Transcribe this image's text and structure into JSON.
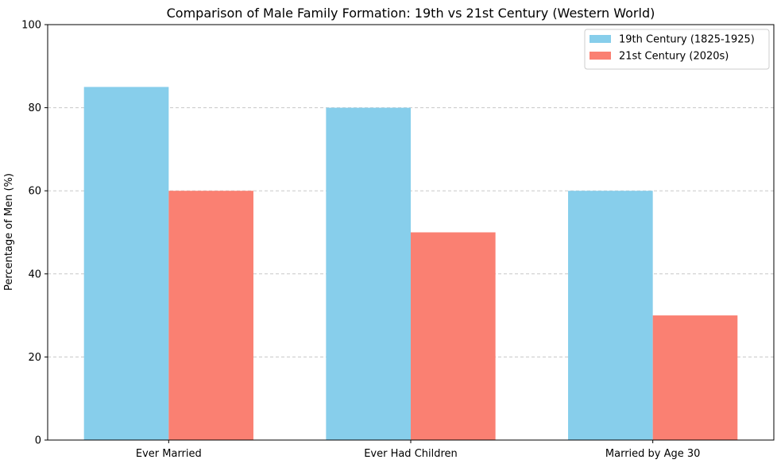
{
  "chart_data": {
    "type": "bar",
    "title": "Comparison of Male Family Formation: 19th vs 21st Century (Western World)",
    "xlabel": "",
    "ylabel": "Percentage of Men (%)",
    "categories": [
      "Ever Married",
      "Ever Had Children",
      "Married by Age 30"
    ],
    "series": [
      {
        "name": "19th Century (1825-1925)",
        "values": [
          85,
          80,
          60
        ],
        "color": "#87ceeb"
      },
      {
        "name": "21st Century (2020s)",
        "values": [
          60,
          50,
          30
        ],
        "color": "#fa8072"
      }
    ],
    "ylim": [
      0,
      100
    ],
    "yticks": [
      0,
      20,
      40,
      60,
      80,
      100
    ],
    "grid": {
      "axis": "y",
      "style": "dashed",
      "color": "#c8c8c8"
    },
    "legend": {
      "placement": "top-right"
    }
  }
}
